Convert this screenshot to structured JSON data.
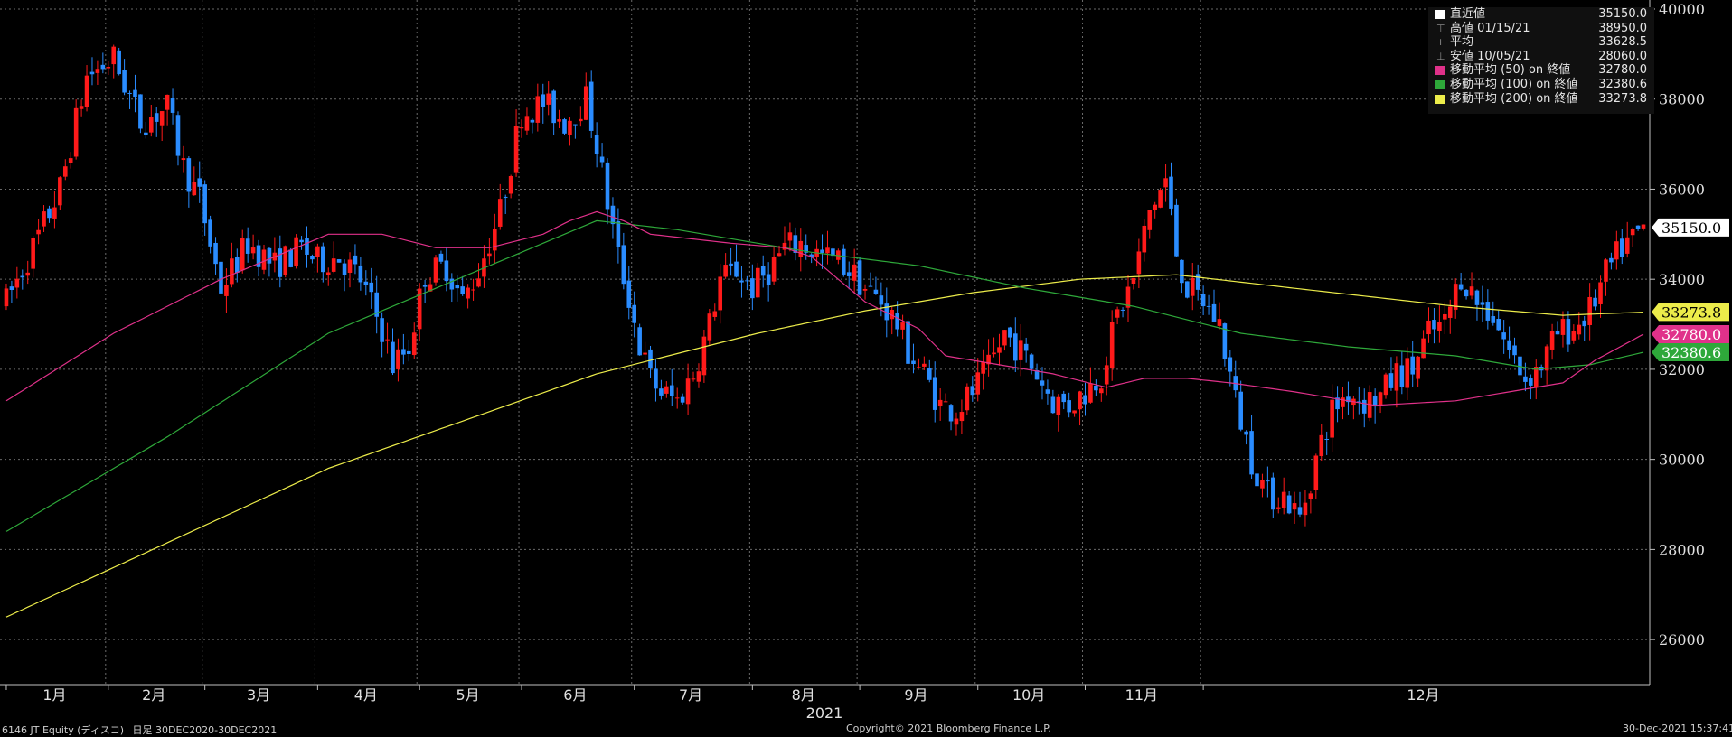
{
  "chart_data": {
    "type": "candlestick",
    "security": "6146 JT Equity (ディスコ)",
    "period": "日足 30DEC2020-30DEC2021",
    "year_label": "2021",
    "copyright": "Copyright© 2021 Bloomberg Finance L.P.",
    "timestamp": "30-Dec-2021 15:37:41",
    "ylim": [
      25000,
      40200
    ],
    "yticks": [
      26000,
      28000,
      30000,
      32000,
      34000,
      36000,
      38000,
      40000
    ],
    "month_labels": [
      "1月",
      "2月",
      "3月",
      "4月",
      "5月",
      "6月",
      "7月",
      "8月",
      "9月",
      "10月",
      "11月",
      "12月"
    ],
    "colors": {
      "up": "#ff1a1a",
      "down": "#2a8cff",
      "grid": "#6a6a6a",
      "axis": "#bfbfbf",
      "ma50": "#e0318a",
      "ma100": "#2ea83a",
      "ma200": "#ecec4a",
      "last": "#ffffff"
    },
    "price_points": [
      [
        0,
        33500
      ],
      [
        5,
        34700
      ],
      [
        10,
        36000
      ],
      [
        15,
        38500
      ],
      [
        20,
        38900
      ],
      [
        25,
        37500
      ],
      [
        30,
        37800
      ],
      [
        33,
        36500
      ],
      [
        36,
        35800
      ],
      [
        40,
        33800
      ],
      [
        45,
        34800
      ],
      [
        50,
        34300
      ],
      [
        55,
        34700
      ],
      [
        58,
        34400
      ],
      [
        62,
        34500
      ],
      [
        66,
        34000
      ],
      [
        70,
        32900
      ],
      [
        72,
        32100
      ],
      [
        75,
        32500
      ],
      [
        78,
        34100
      ],
      [
        82,
        34300
      ],
      [
        85,
        33500
      ],
      [
        88,
        34200
      ],
      [
        92,
        35500
      ],
      [
        96,
        37700
      ],
      [
        100,
        37900
      ],
      [
        104,
        37500
      ],
      [
        108,
        38000
      ],
      [
        110,
        37000
      ],
      [
        112,
        35700
      ],
      [
        114,
        34500
      ],
      [
        116,
        33600
      ],
      [
        118,
        32500
      ],
      [
        120,
        31800
      ],
      [
        122,
        31500
      ],
      [
        125,
        31300
      ],
      [
        128,
        31900
      ],
      [
        131,
        33000
      ],
      [
        133,
        34000
      ],
      [
        136,
        34200
      ],
      [
        139,
        33800
      ],
      [
        142,
        34200
      ],
      [
        145,
        34700
      ],
      [
        148,
        34800
      ],
      [
        152,
        34500
      ],
      [
        155,
        34400
      ],
      [
        158,
        34100
      ],
      [
        160,
        33800
      ],
      [
        163,
        33500
      ],
      [
        166,
        33000
      ],
      [
        168,
        32400
      ],
      [
        171,
        31900
      ],
      [
        174,
        31200
      ],
      [
        177,
        31100
      ],
      [
        180,
        31500
      ],
      [
        183,
        32000
      ],
      [
        186,
        32800
      ],
      [
        189,
        32400
      ],
      [
        192,
        31900
      ],
      [
        195,
        31300
      ],
      [
        198,
        31200
      ],
      [
        201,
        31500
      ],
      [
        204,
        31900
      ],
      [
        207,
        33200
      ],
      [
        210,
        34000
      ],
      [
        213,
        35500
      ],
      [
        216,
        36200
      ],
      [
        218,
        34600
      ],
      [
        220,
        33800
      ],
      [
        223,
        33500
      ],
      [
        226,
        33000
      ],
      [
        229,
        31300
      ],
      [
        232,
        30000
      ],
      [
        235,
        29200
      ],
      [
        238,
        29200
      ],
      [
        241,
        28700
      ],
      [
        244,
        30000
      ],
      [
        247,
        31100
      ],
      [
        250,
        31500
      ],
      [
        253,
        31300
      ],
      [
        256,
        31400
      ],
      [
        259,
        31900
      ],
      [
        262,
        32000
      ],
      [
        265,
        32800
      ],
      [
        268,
        33000
      ],
      [
        271,
        34100
      ],
      [
        274,
        33500
      ],
      [
        277,
        33200
      ],
      [
        280,
        32400
      ],
      [
        283,
        31800
      ],
      [
        286,
        32100
      ],
      [
        289,
        32800
      ],
      [
        292,
        32900
      ],
      [
        295,
        33300
      ],
      [
        298,
        34100
      ],
      [
        301,
        34700
      ],
      [
        304,
        35000
      ],
      [
        305,
        35150
      ]
    ],
    "ma50_points": [
      [
        0,
        31300
      ],
      [
        20,
        32800
      ],
      [
        40,
        34000
      ],
      [
        60,
        35000
      ],
      [
        70,
        35000
      ],
      [
        80,
        34700
      ],
      [
        90,
        34700
      ],
      [
        100,
        35000
      ],
      [
        105,
        35300
      ],
      [
        110,
        35500
      ],
      [
        115,
        35300
      ],
      [
        120,
        35000
      ],
      [
        135,
        34800
      ],
      [
        145,
        34700
      ],
      [
        150,
        34500
      ],
      [
        160,
        33500
      ],
      [
        170,
        32900
      ],
      [
        175,
        32300
      ],
      [
        185,
        32100
      ],
      [
        195,
        31900
      ],
      [
        205,
        31600
      ],
      [
        212,
        31800
      ],
      [
        220,
        31800
      ],
      [
        228,
        31700
      ],
      [
        240,
        31500
      ],
      [
        255,
        31200
      ],
      [
        270,
        31300
      ],
      [
        280,
        31500
      ],
      [
        290,
        31700
      ],
      [
        296,
        32200
      ],
      [
        305,
        32780
      ]
    ],
    "ma100_points": [
      [
        0,
        28400
      ],
      [
        30,
        30500
      ],
      [
        60,
        32800
      ],
      [
        90,
        34300
      ],
      [
        110,
        35300
      ],
      [
        125,
        35100
      ],
      [
        150,
        34600
      ],
      [
        170,
        34300
      ],
      [
        190,
        33800
      ],
      [
        210,
        33400
      ],
      [
        230,
        32800
      ],
      [
        250,
        32500
      ],
      [
        270,
        32300
      ],
      [
        285,
        32000
      ],
      [
        295,
        32100
      ],
      [
        305,
        32380
      ]
    ],
    "ma200_points": [
      [
        0,
        26500
      ],
      [
        60,
        29800
      ],
      [
        110,
        31900
      ],
      [
        140,
        32800
      ],
      [
        160,
        33300
      ],
      [
        180,
        33700
      ],
      [
        200,
        34000
      ],
      [
        218,
        34100
      ],
      [
        240,
        33800
      ],
      [
        270,
        33400
      ],
      [
        290,
        33200
      ],
      [
        305,
        33270
      ]
    ],
    "legend": [
      {
        "label": "直近値",
        "value": "35150.0",
        "swatch": "#ffffff",
        "sym": ""
      },
      {
        "label": "高値 01/15/21",
        "value": "38950.0",
        "swatch": "",
        "sym": "⊤"
      },
      {
        "label": "平均",
        "value": "33628.5",
        "swatch": "",
        "sym": "+"
      },
      {
        "label": "安値 10/05/21",
        "value": "28060.0",
        "swatch": "",
        "sym": "⊥"
      },
      {
        "label": "移動平均 (50) on 終値",
        "value": "32780.0",
        "swatch": "#e0318a",
        "sym": ""
      },
      {
        "label": "移動平均 (100) on 終値",
        "value": "32380.6",
        "swatch": "#2ea83a",
        "sym": ""
      },
      {
        "label": "移動平均 (200) on 終値",
        "value": "33273.8",
        "swatch": "#ecec4a",
        "sym": ""
      }
    ],
    "tags": [
      {
        "value": "35150.0",
        "bg": "#ffffff",
        "fg": "#000000"
      },
      {
        "value": "33273.8",
        "bg": "#ecec4a",
        "fg": "#000000"
      },
      {
        "value": "32780.0",
        "bg": "#e0318a",
        "fg": "#ffffff"
      },
      {
        "value": "32380.6",
        "bg": "#2ea83a",
        "fg": "#ffffff"
      }
    ]
  }
}
